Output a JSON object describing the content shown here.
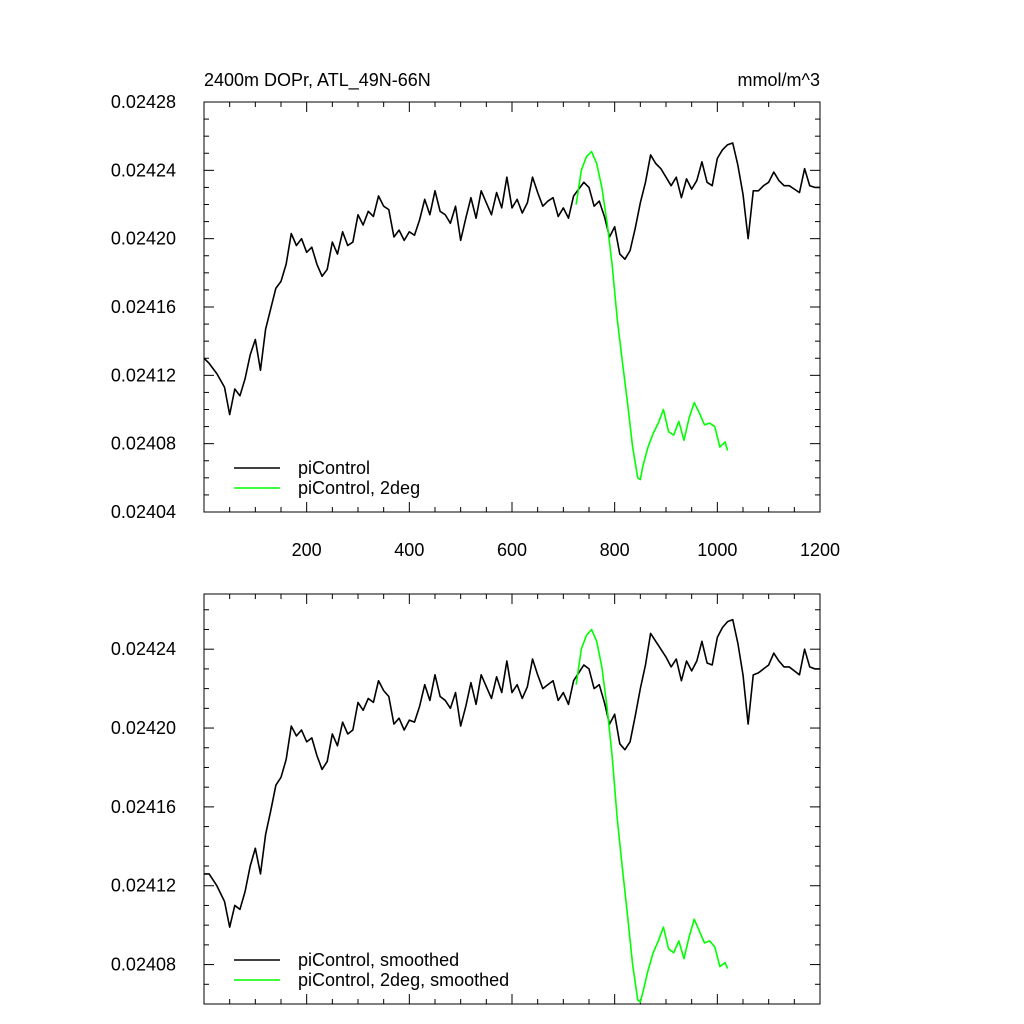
{
  "chart_data": [
    {
      "type": "line",
      "title": "2400m DOPr, ATL_49N-66N",
      "units": "mmol/m^3",
      "xlim": [
        0,
        1200
      ],
      "ylim": [
        0.02404,
        0.02428
      ],
      "x_ticks": [
        200,
        400,
        600,
        800,
        1000,
        1200
      ],
      "x_tick_labels": [
        "200",
        "400",
        "600",
        "800",
        "1000",
        "1200"
      ],
      "y_ticks": [
        0.02404,
        0.02408,
        0.02412,
        0.02416,
        0.0242,
        0.02424,
        0.02428
      ],
      "y_tick_labels": [
        "0.02404",
        "0.02408",
        "0.02412",
        "0.02416",
        "0.02420",
        "0.02424",
        "0.02428"
      ],
      "legend_position": "bottom-left",
      "series": [
        {
          "name": "piControl",
          "color": "#000000",
          "x": [
            0,
            10,
            25,
            40,
            50,
            60,
            70,
            80,
            90,
            100,
            110,
            120,
            130,
            140,
            150,
            160,
            170,
            180,
            190,
            200,
            210,
            220,
            230,
            240,
            250,
            260,
            270,
            280,
            290,
            300,
            310,
            320,
            330,
            340,
            350,
            360,
            370,
            380,
            390,
            400,
            410,
            420,
            430,
            440,
            450,
            460,
            470,
            480,
            490,
            500,
            510,
            520,
            530,
            540,
            550,
            560,
            570,
            580,
            590,
            600,
            610,
            620,
            630,
            640,
            650,
            660,
            670,
            680,
            690,
            700,
            710,
            720,
            730,
            740,
            750,
            760,
            770,
            780,
            790,
            800,
            810,
            820,
            830,
            840,
            850,
            860,
            870,
            880,
            890,
            900,
            910,
            920,
            930,
            940,
            950,
            960,
            970,
            980,
            990,
            1000,
            1010,
            1020,
            1030,
            1040,
            1050,
            1060,
            1070,
            1080,
            1090,
            1100,
            1110,
            1120,
            1130,
            1140,
            1150,
            1160,
            1170,
            1180,
            1190,
            1200
          ],
          "y": [
            0.02413,
            0.024127,
            0.024121,
            0.024113,
            0.024097,
            0.024112,
            0.024108,
            0.024118,
            0.024132,
            0.024141,
            0.024123,
            0.024147,
            0.024159,
            0.024171,
            0.024175,
            0.024185,
            0.024203,
            0.024196,
            0.0242,
            0.024192,
            0.024195,
            0.024185,
            0.024178,
            0.024182,
            0.024198,
            0.024191,
            0.024204,
            0.024196,
            0.024198,
            0.024214,
            0.024208,
            0.024216,
            0.024213,
            0.024225,
            0.024219,
            0.024217,
            0.024201,
            0.024205,
            0.024199,
            0.024204,
            0.024202,
            0.024211,
            0.024223,
            0.024214,
            0.024228,
            0.024216,
            0.024214,
            0.024209,
            0.024219,
            0.024199,
            0.024212,
            0.024224,
            0.024212,
            0.024228,
            0.024221,
            0.024214,
            0.024227,
            0.024218,
            0.024236,
            0.024218,
            0.024223,
            0.024215,
            0.024221,
            0.024236,
            0.024227,
            0.024219,
            0.024222,
            0.024224,
            0.024213,
            0.024218,
            0.024212,
            0.024225,
            0.024229,
            0.024233,
            0.02423,
            0.024219,
            0.024222,
            0.024213,
            0.024201,
            0.024207,
            0.024191,
            0.024188,
            0.024193,
            0.024206,
            0.024221,
            0.024233,
            0.024249,
            0.024244,
            0.024241,
            0.024236,
            0.024231,
            0.024236,
            0.024224,
            0.024235,
            0.024229,
            0.024234,
            0.024245,
            0.024233,
            0.024231,
            0.024247,
            0.024252,
            0.024255,
            0.024256,
            0.024243,
            0.024226,
            0.0242,
            0.024228,
            0.024228,
            0.024231,
            0.024233,
            0.024239,
            0.024234,
            0.024231,
            0.024231,
            0.024229,
            0.024227,
            0.024241,
            0.024231,
            0.02423,
            0.02423
          ]
        },
        {
          "name": "piControl, 2deg",
          "color": "#00ff00",
          "x": [
            725,
            735,
            745,
            755,
            765,
            775,
            785,
            795,
            805,
            815,
            825,
            835,
            845,
            850,
            855,
            865,
            875,
            885,
            895,
            905,
            915,
            925,
            935,
            945,
            955,
            965,
            975,
            985,
            995,
            1005,
            1015,
            1020
          ],
          "y": [
            0.02422,
            0.02424,
            0.024248,
            0.024251,
            0.024244,
            0.02423,
            0.02421,
            0.024185,
            0.024153,
            0.024128,
            0.024104,
            0.024078,
            0.02406,
            0.024059,
            0.024067,
            0.024078,
            0.024086,
            0.024092,
            0.0241,
            0.024087,
            0.024085,
            0.024093,
            0.024082,
            0.024095,
            0.024104,
            0.024098,
            0.024091,
            0.024092,
            0.02409,
            0.024078,
            0.024081,
            0.024076
          ]
        }
      ]
    },
    {
      "type": "line",
      "title": "",
      "xlim": [
        0,
        1200
      ],
      "ylim": [
        0.02406,
        0.024268
      ],
      "y_ticks": [
        0.02408,
        0.02412,
        0.02416,
        0.0242,
        0.02424
      ],
      "y_tick_labels": [
        "0.02408",
        "0.02412",
        "0.02416",
        "0.02420",
        "0.02424"
      ],
      "legend_position": "bottom-left",
      "series": [
        {
          "name": "piControl, smoothed",
          "color": "#000000",
          "x": [
            0,
            10,
            25,
            40,
            50,
            60,
            70,
            80,
            90,
            100,
            110,
            120,
            130,
            140,
            150,
            160,
            170,
            180,
            190,
            200,
            210,
            220,
            230,
            240,
            250,
            260,
            270,
            280,
            290,
            300,
            310,
            320,
            330,
            340,
            350,
            360,
            370,
            380,
            390,
            400,
            410,
            420,
            430,
            440,
            450,
            460,
            470,
            480,
            490,
            500,
            510,
            520,
            530,
            540,
            550,
            560,
            570,
            580,
            590,
            600,
            610,
            620,
            630,
            640,
            650,
            660,
            670,
            680,
            690,
            700,
            710,
            720,
            730,
            740,
            750,
            760,
            770,
            780,
            790,
            800,
            810,
            820,
            830,
            840,
            850,
            860,
            870,
            880,
            890,
            900,
            910,
            920,
            930,
            940,
            950,
            960,
            970,
            980,
            990,
            1000,
            1010,
            1020,
            1030,
            1040,
            1050,
            1060,
            1070,
            1080,
            1090,
            1100,
            1110,
            1120,
            1130,
            1140,
            1150,
            1160,
            1170,
            1180,
            1190,
            1200
          ],
          "y": [
            0.024126,
            0.024126,
            0.02412,
            0.024112,
            0.024099,
            0.02411,
            0.024108,
            0.024117,
            0.02413,
            0.024139,
            0.024126,
            0.024146,
            0.024158,
            0.024171,
            0.024175,
            0.024184,
            0.024201,
            0.024196,
            0.024199,
            0.024193,
            0.024195,
            0.024186,
            0.024179,
            0.024183,
            0.024197,
            0.024191,
            0.024203,
            0.024197,
            0.024199,
            0.024213,
            0.024209,
            0.024215,
            0.024213,
            0.024224,
            0.024219,
            0.024216,
            0.024202,
            0.024205,
            0.024199,
            0.024204,
            0.024203,
            0.024211,
            0.024222,
            0.024214,
            0.024227,
            0.024216,
            0.024214,
            0.02421,
            0.024218,
            0.024201,
            0.024211,
            0.024223,
            0.024212,
            0.024227,
            0.024221,
            0.024215,
            0.024226,
            0.024218,
            0.024234,
            0.024218,
            0.024222,
            0.024215,
            0.024221,
            0.024235,
            0.024227,
            0.02422,
            0.024222,
            0.024224,
            0.024214,
            0.024218,
            0.024212,
            0.024224,
            0.024228,
            0.024232,
            0.02423,
            0.02422,
            0.024222,
            0.024213,
            0.024202,
            0.024207,
            0.024192,
            0.024189,
            0.024193,
            0.024206,
            0.02422,
            0.024232,
            0.024248,
            0.024244,
            0.02424,
            0.024236,
            0.024231,
            0.024235,
            0.024224,
            0.024234,
            0.024229,
            0.024234,
            0.024244,
            0.024233,
            0.024232,
            0.024246,
            0.024251,
            0.024254,
            0.024255,
            0.024243,
            0.024227,
            0.024202,
            0.024227,
            0.024228,
            0.02423,
            0.024232,
            0.024238,
            0.024234,
            0.024231,
            0.024231,
            0.024229,
            0.024227,
            0.02424,
            0.024231,
            0.02423,
            0.02423
          ]
        },
        {
          "name": "piControl, 2deg, smoothed",
          "color": "#00ff00",
          "x": [
            725,
            735,
            745,
            755,
            765,
            775,
            785,
            795,
            805,
            815,
            825,
            835,
            845,
            850,
            855,
            865,
            875,
            885,
            895,
            905,
            915,
            925,
            935,
            945,
            955,
            965,
            975,
            985,
            995,
            1005,
            1015,
            1020
          ],
          "y": [
            0.024222,
            0.02424,
            0.024247,
            0.02425,
            0.024244,
            0.024231,
            0.024211,
            0.024186,
            0.024154,
            0.024129,
            0.024105,
            0.02408,
            0.024062,
            0.024061,
            0.024066,
            0.024077,
            0.024086,
            0.024092,
            0.024099,
            0.024088,
            0.024086,
            0.024092,
            0.024083,
            0.024094,
            0.024103,
            0.024097,
            0.024091,
            0.024092,
            0.024089,
            0.024079,
            0.024081,
            0.024078
          ]
        }
      ]
    }
  ]
}
